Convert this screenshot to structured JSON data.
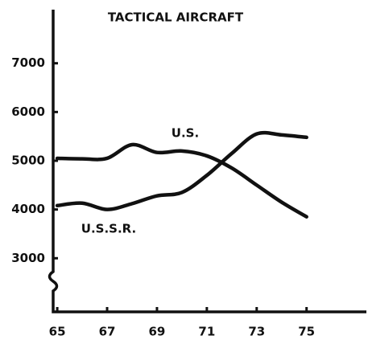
{
  "chart_data": {
    "type": "line",
    "title": "TACTICAL AIRCRAFT",
    "x": [
      65,
      66,
      67,
      68,
      69,
      70,
      71,
      72,
      73,
      74,
      75
    ],
    "series": [
      {
        "name": "U.S.",
        "color": "#111111",
        "values": [
          5050,
          5040,
          5050,
          5330,
          5170,
          5200,
          5100,
          4850,
          4500,
          4150,
          3850
        ]
      },
      {
        "name": "U.S.S.R.",
        "color": "#111111",
        "values": [
          4080,
          4130,
          4000,
          4120,
          4280,
          4350,
          4700,
          5150,
          5550,
          5530,
          5480
        ]
      }
    ],
    "xlim": [
      64.9,
      77.4
    ],
    "xticks": [
      65,
      67,
      69,
      71,
      73,
      75
    ],
    "ylim": [
      1900,
      8100
    ],
    "yticks": [
      3000,
      4000,
      5000,
      6000,
      7000
    ],
    "grid": false
  }
}
